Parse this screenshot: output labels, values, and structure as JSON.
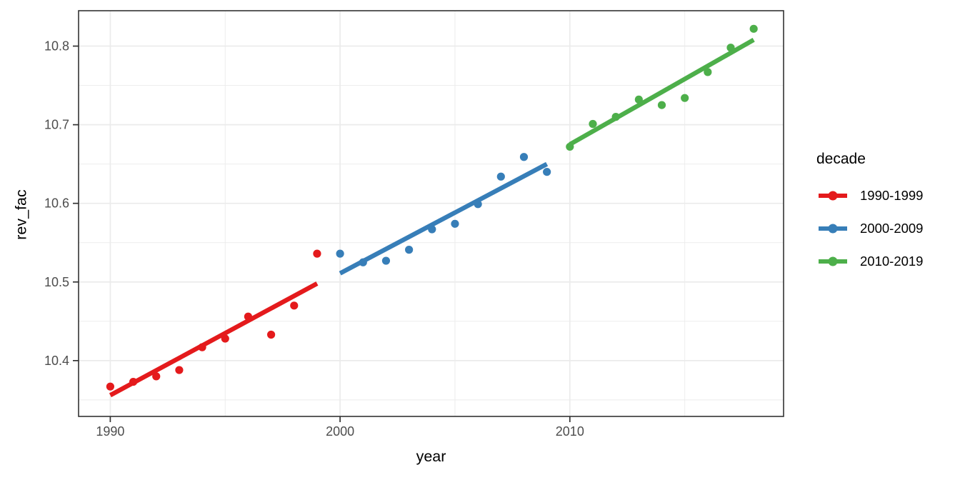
{
  "chart_data": {
    "type": "scatter",
    "title": "",
    "xlabel": "year",
    "ylabel": "rev_fac",
    "legend_title": "decade",
    "legend_position": "right",
    "grid": true,
    "xlim": [
      1988.62,
      2019.3
    ],
    "ylim": [
      10.329,
      10.845
    ],
    "x_ticks": [
      {
        "value": 1990,
        "label": "1990"
      },
      {
        "value": 2000,
        "label": "2000"
      },
      {
        "value": 2010,
        "label": "2010"
      }
    ],
    "x_minor_ticks": [
      1995,
      2005,
      2015
    ],
    "y_ticks": [
      {
        "value": 10.4,
        "label": "10.4"
      },
      {
        "value": 10.5,
        "label": "10.5"
      },
      {
        "value": 10.6,
        "label": "10.6"
      },
      {
        "value": 10.7,
        "label": "10.7"
      },
      {
        "value": 10.8,
        "label": "10.8"
      }
    ],
    "y_minor_ticks": [
      10.35,
      10.45,
      10.55,
      10.65,
      10.75
    ],
    "series": [
      {
        "name": "1990-1999",
        "color": "#E41A1C",
        "points": [
          [
            1990,
            10.367
          ],
          [
            1991,
            10.373
          ],
          [
            1992,
            10.38
          ],
          [
            1993,
            10.388
          ],
          [
            1994,
            10.417
          ],
          [
            1995,
            10.428
          ],
          [
            1996,
            10.456
          ],
          [
            1997,
            10.433
          ],
          [
            1998,
            10.47
          ],
          [
            1999,
            10.536
          ]
        ],
        "trend": [
          [
            1990,
            10.356
          ],
          [
            1999,
            10.498
          ]
        ]
      },
      {
        "name": "2000-2009",
        "color": "#377EB8",
        "points": [
          [
            2000,
            10.536
          ],
          [
            2001,
            10.525
          ],
          [
            2002,
            10.527
          ],
          [
            2003,
            10.541
          ],
          [
            2004,
            10.567
          ],
          [
            2005,
            10.574
          ],
          [
            2006,
            10.599
          ],
          [
            2007,
            10.634
          ],
          [
            2008,
            10.659
          ],
          [
            2009,
            10.64
          ]
        ],
        "trend": [
          [
            2000,
            10.511
          ],
          [
            2009,
            10.65
          ]
        ]
      },
      {
        "name": "2010-2019",
        "color": "#4DAF4A",
        "points": [
          [
            2010,
            10.672
          ],
          [
            2011,
            10.701
          ],
          [
            2012,
            10.71
          ],
          [
            2013,
            10.732
          ],
          [
            2014,
            10.725
          ],
          [
            2015,
            10.734
          ],
          [
            2016,
            10.767
          ],
          [
            2017,
            10.798
          ],
          [
            2018,
            10.822
          ]
        ],
        "trend": [
          [
            2010,
            10.675
          ],
          [
            2018,
            10.808
          ]
        ]
      }
    ],
    "style": {
      "background": "#FFFFFF",
      "panel_background": "#FFFFFF",
      "grid_color": "#EBEBEB",
      "panel_border_color": "#333333",
      "tick_color": "#333333",
      "tick_label_color": "#4D4D4D",
      "text_color": "#000000"
    }
  }
}
